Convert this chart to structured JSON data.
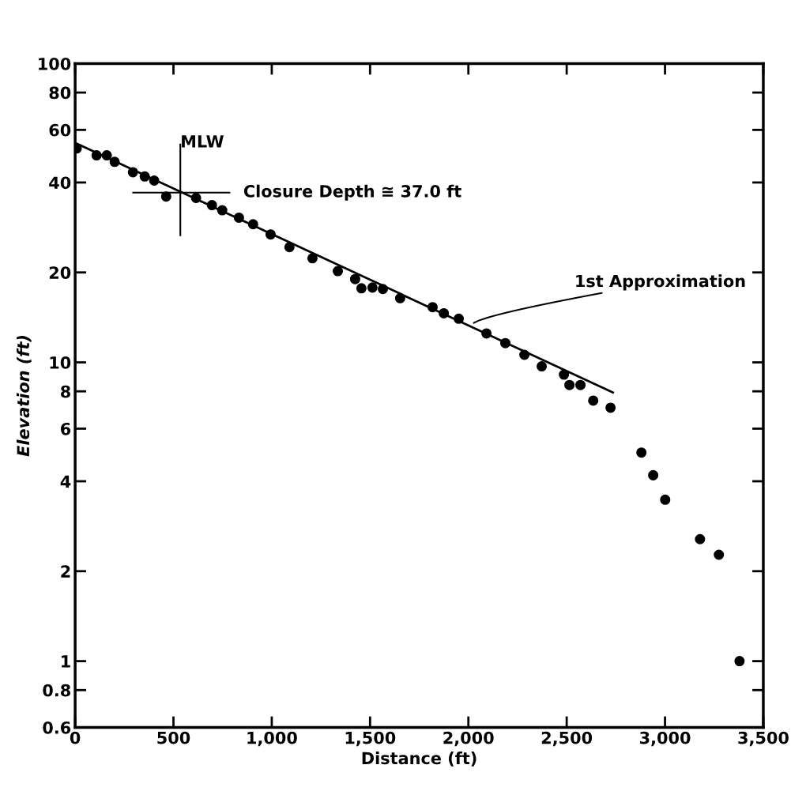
{
  "chart_data": {
    "type": "scatter",
    "xlabel": "Distance (ft)",
    "ylabel": "Elevation (ft)",
    "log": "y",
    "xlim": [
      0,
      3500
    ],
    "ylim": [
      0.6,
      100
    ],
    "xticks": [
      0,
      500,
      {
        "value": 1000,
        "label": "1,000"
      },
      {
        "value": 1500,
        "label": "1,500"
      },
      {
        "value": 2000,
        "label": "2,000"
      },
      {
        "value": 2500,
        "label": "2,500"
      },
      {
        "value": 3000,
        "label": "3,000"
      },
      {
        "value": 3500,
        "label": "3,500"
      }
    ],
    "yticks": [
      0.6,
      0.8,
      1,
      2,
      4,
      6,
      8,
      10,
      20,
      40,
      60,
      80,
      100
    ],
    "grid": false,
    "ref_lines": [
      {
        "axis": "x",
        "value": 535,
        "label": "MLW",
        "color": "#000000"
      },
      {
        "axis": "y",
        "value": 37,
        "label": "Closure Depth ≅ 37.0 ft",
        "color": "#000000"
      }
    ],
    "series": [
      {
        "color": "#000000",
        "marker": "circle",
        "x": [
          8,
          109,
          161,
          201,
          294,
          354,
          402,
          463,
          615,
          696,
          748,
          833,
          905,
          994,
          1090,
          1207,
          1336,
          1424,
          1456,
          1512,
          1565,
          1653,
          1818,
          1875,
          1951,
          2092,
          2188,
          2285,
          2373,
          2486,
          2514,
          2570,
          2635,
          2723,
          2880,
          2940,
          3001,
          3178,
          3274,
          3379
        ],
        "values": [
          52,
          49.3,
          49.3,
          46.9,
          43.3,
          41.9,
          40.6,
          35.9,
          35.5,
          33.6,
          32.3,
          30.5,
          29.0,
          26.8,
          24.3,
          22.3,
          20.2,
          19.0,
          17.7,
          17.8,
          17.6,
          16.4,
          15.3,
          14.6,
          14.0,
          12.5,
          11.6,
          10.6,
          9.7,
          9.1,
          8.4,
          8.4,
          7.45,
          7.05,
          4.99,
          4.19,
          3.47,
          2.56,
          2.27,
          1.0
        ]
      },
      {
        "type": "line",
        "color": "#000000",
        "line_style": "solid",
        "x": [
          0,
          2735
        ],
        "values": [
          54.3,
          7.93
        ]
      }
    ],
    "annotations": [
      {
        "text": "1st Approximation",
        "x": 2019,
        "y": 13.4
      }
    ]
  }
}
